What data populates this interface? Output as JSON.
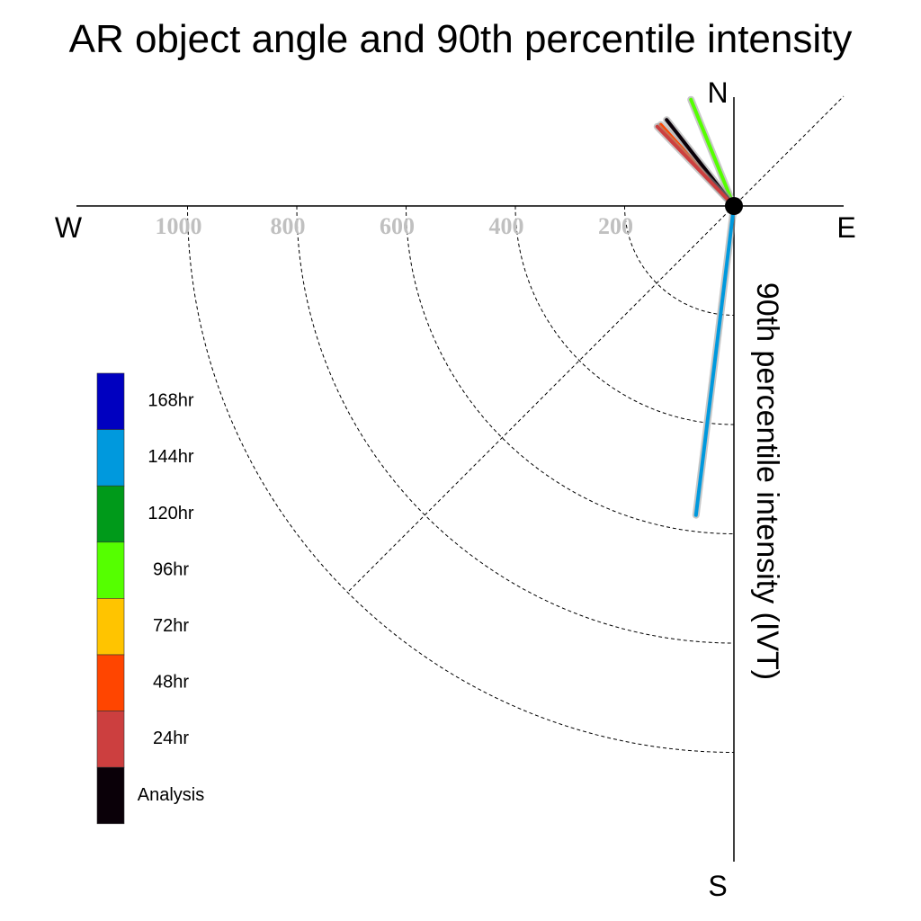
{
  "chart_data": {
    "type": "polar-quadrant",
    "title": "AR object angle and 90th percentile intensity",
    "ylabel": "90th percentile intensity (IVT)",
    "compass": {
      "north": "N",
      "south": "S",
      "east": "E",
      "west": "W"
    },
    "radial_ticks": [
      {
        "value": 200,
        "label": "200"
      },
      {
        "value": 400,
        "label": "400"
      },
      {
        "value": 600,
        "label": "600"
      },
      {
        "value": 800,
        "label": "800"
      },
      {
        "value": 1000,
        "label": "1000"
      }
    ],
    "rmax": 1200,
    "grid": true,
    "legend_position": "left",
    "legend": [
      {
        "label": "168hr",
        "color": "#0000c0"
      },
      {
        "label": "144hr",
        "color": "#0099dd"
      },
      {
        "label": "120hr",
        "color": "#009a1a"
      },
      {
        "label": "96hr",
        "color": "#55ff00"
      },
      {
        "label": "72hr",
        "color": "#ffc400"
      },
      {
        "label": "48hr",
        "color": "#ff4500"
      },
      {
        "label": "24hr",
        "color": "#cc3f3f"
      },
      {
        "label": "Analysis",
        "color": "#0a0008"
      }
    ],
    "series": [
      {
        "name": "144hr",
        "color": "#0099dd",
        "azimuth_deg": 187.0,
        "intensity": 570
      },
      {
        "name": "96hr",
        "color": "#55ff00",
        "azimuth_deg": 338.0,
        "intensity": 210
      },
      {
        "name": "48hr",
        "color": "#ff4500",
        "azimuth_deg": 318.0,
        "intensity": 200
      },
      {
        "name": "Analysis",
        "color": "#0a0008",
        "azimuth_deg": 322.0,
        "intensity": 200
      },
      {
        "name": "24hr",
        "color": "#cc3f3f",
        "azimuth_deg": 316.0,
        "intensity": 202
      }
    ]
  }
}
